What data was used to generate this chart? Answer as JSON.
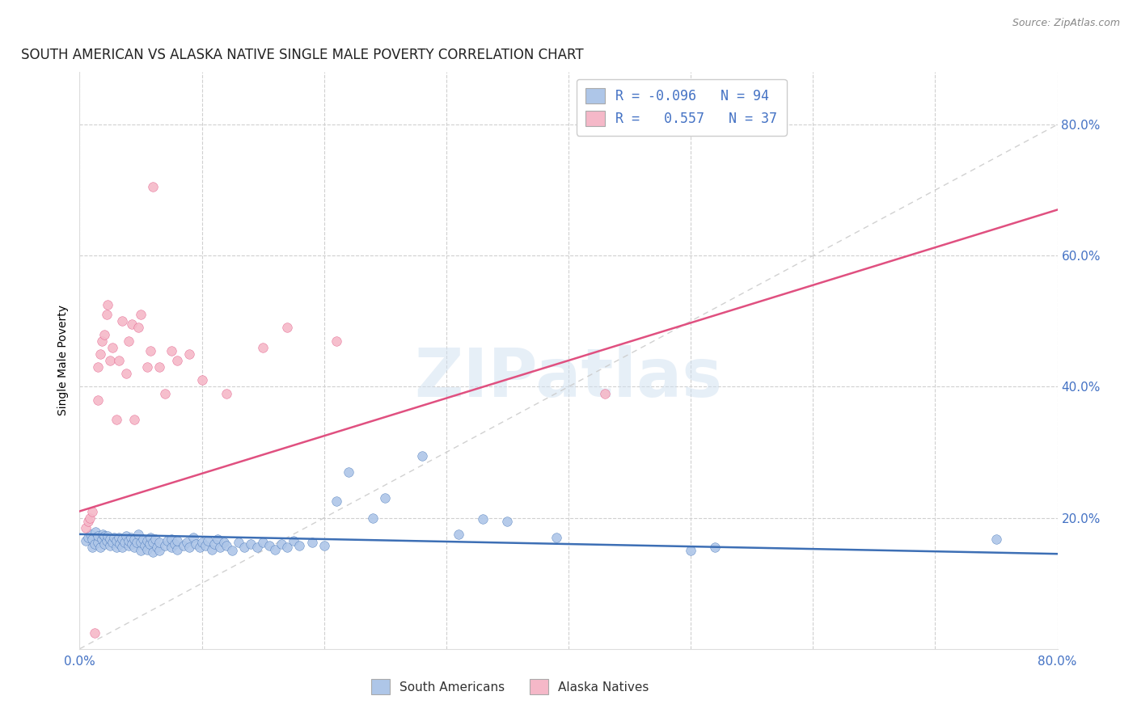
{
  "title": "SOUTH AMERICAN VS ALASKA NATIVE SINGLE MALE POVERTY CORRELATION CHART",
  "source": "Source: ZipAtlas.com",
  "ylabel": "Single Male Poverty",
  "watermark": "ZIPatlas",
  "xlim": [
    0.0,
    0.8
  ],
  "ylim": [
    0.0,
    0.88
  ],
  "legend_label1": "South Americans",
  "legend_label2": "Alaska Natives",
  "blue_color": "#aec6e8",
  "pink_color": "#f5b8c8",
  "blue_line_color": "#3d6fb5",
  "pink_line_color": "#e05080",
  "diagonal_color": "#cccccc",
  "title_fontsize": 12,
  "blue_line": [
    [
      0.0,
      0.175
    ],
    [
      0.8,
      0.145
    ]
  ],
  "pink_line": [
    [
      0.0,
      0.21
    ],
    [
      0.8,
      0.67
    ]
  ],
  "diag_line": [
    [
      0.0,
      0.0
    ],
    [
      0.8,
      0.8
    ]
  ],
  "blue_scatter": [
    [
      0.005,
      0.165
    ],
    [
      0.007,
      0.17
    ],
    [
      0.009,
      0.175
    ],
    [
      0.01,
      0.155
    ],
    [
      0.01,
      0.168
    ],
    [
      0.012,
      0.16
    ],
    [
      0.013,
      0.178
    ],
    [
      0.015,
      0.163
    ],
    [
      0.015,
      0.172
    ],
    [
      0.017,
      0.155
    ],
    [
      0.018,
      0.168
    ],
    [
      0.019,
      0.175
    ],
    [
      0.02,
      0.16
    ],
    [
      0.02,
      0.173
    ],
    [
      0.022,
      0.165
    ],
    [
      0.023,
      0.172
    ],
    [
      0.025,
      0.158
    ],
    [
      0.025,
      0.168
    ],
    [
      0.027,
      0.162
    ],
    [
      0.028,
      0.17
    ],
    [
      0.03,
      0.155
    ],
    [
      0.03,
      0.165
    ],
    [
      0.032,
      0.17
    ],
    [
      0.033,
      0.16
    ],
    [
      0.035,
      0.155
    ],
    [
      0.035,
      0.168
    ],
    [
      0.037,
      0.163
    ],
    [
      0.038,
      0.172
    ],
    [
      0.04,
      0.158
    ],
    [
      0.04,
      0.165
    ],
    [
      0.042,
      0.17
    ],
    [
      0.043,
      0.16
    ],
    [
      0.045,
      0.155
    ],
    [
      0.045,
      0.168
    ],
    [
      0.047,
      0.162
    ],
    [
      0.048,
      0.175
    ],
    [
      0.05,
      0.15
    ],
    [
      0.05,
      0.163
    ],
    [
      0.052,
      0.168
    ],
    [
      0.053,
      0.157
    ],
    [
      0.055,
      0.152
    ],
    [
      0.055,
      0.165
    ],
    [
      0.057,
      0.16
    ],
    [
      0.058,
      0.17
    ],
    [
      0.06,
      0.148
    ],
    [
      0.06,
      0.162
    ],
    [
      0.062,
      0.167
    ],
    [
      0.063,
      0.155
    ],
    [
      0.065,
      0.15
    ],
    [
      0.065,
      0.163
    ],
    [
      0.07,
      0.157
    ],
    [
      0.072,
      0.165
    ],
    [
      0.075,
      0.155
    ],
    [
      0.075,
      0.168
    ],
    [
      0.078,
      0.16
    ],
    [
      0.08,
      0.152
    ],
    [
      0.08,
      0.165
    ],
    [
      0.085,
      0.158
    ],
    [
      0.088,
      0.163
    ],
    [
      0.09,
      0.155
    ],
    [
      0.093,
      0.17
    ],
    [
      0.095,
      0.16
    ],
    [
      0.098,
      0.155
    ],
    [
      0.1,
      0.162
    ],
    [
      0.103,
      0.157
    ],
    [
      0.105,
      0.165
    ],
    [
      0.108,
      0.152
    ],
    [
      0.11,
      0.16
    ],
    [
      0.113,
      0.167
    ],
    [
      0.115,
      0.155
    ],
    [
      0.118,
      0.163
    ],
    [
      0.12,
      0.158
    ],
    [
      0.125,
      0.15
    ],
    [
      0.13,
      0.162
    ],
    [
      0.135,
      0.155
    ],
    [
      0.14,
      0.16
    ],
    [
      0.145,
      0.155
    ],
    [
      0.15,
      0.163
    ],
    [
      0.155,
      0.157
    ],
    [
      0.16,
      0.152
    ],
    [
      0.165,
      0.16
    ],
    [
      0.17,
      0.155
    ],
    [
      0.175,
      0.165
    ],
    [
      0.18,
      0.158
    ],
    [
      0.19,
      0.163
    ],
    [
      0.2,
      0.157
    ],
    [
      0.21,
      0.225
    ],
    [
      0.22,
      0.27
    ],
    [
      0.24,
      0.2
    ],
    [
      0.25,
      0.23
    ],
    [
      0.28,
      0.295
    ],
    [
      0.31,
      0.175
    ],
    [
      0.33,
      0.198
    ],
    [
      0.35,
      0.195
    ],
    [
      0.39,
      0.17
    ],
    [
      0.5,
      0.15
    ],
    [
      0.52,
      0.155
    ],
    [
      0.75,
      0.168
    ]
  ],
  "pink_scatter": [
    [
      0.005,
      0.185
    ],
    [
      0.007,
      0.195
    ],
    [
      0.008,
      0.2
    ],
    [
      0.01,
      0.21
    ],
    [
      0.012,
      0.025
    ],
    [
      0.015,
      0.38
    ],
    [
      0.015,
      0.43
    ],
    [
      0.017,
      0.45
    ],
    [
      0.018,
      0.47
    ],
    [
      0.02,
      0.48
    ],
    [
      0.022,
      0.51
    ],
    [
      0.023,
      0.525
    ],
    [
      0.025,
      0.44
    ],
    [
      0.027,
      0.46
    ],
    [
      0.03,
      0.35
    ],
    [
      0.032,
      0.44
    ],
    [
      0.035,
      0.5
    ],
    [
      0.038,
      0.42
    ],
    [
      0.04,
      0.47
    ],
    [
      0.043,
      0.495
    ],
    [
      0.045,
      0.35
    ],
    [
      0.048,
      0.49
    ],
    [
      0.05,
      0.51
    ],
    [
      0.055,
      0.43
    ],
    [
      0.058,
      0.455
    ],
    [
      0.06,
      0.705
    ],
    [
      0.065,
      0.43
    ],
    [
      0.07,
      0.39
    ],
    [
      0.075,
      0.455
    ],
    [
      0.08,
      0.44
    ],
    [
      0.09,
      0.45
    ],
    [
      0.1,
      0.41
    ],
    [
      0.12,
      0.39
    ],
    [
      0.15,
      0.46
    ],
    [
      0.17,
      0.49
    ],
    [
      0.21,
      0.47
    ],
    [
      0.43,
      0.39
    ]
  ]
}
